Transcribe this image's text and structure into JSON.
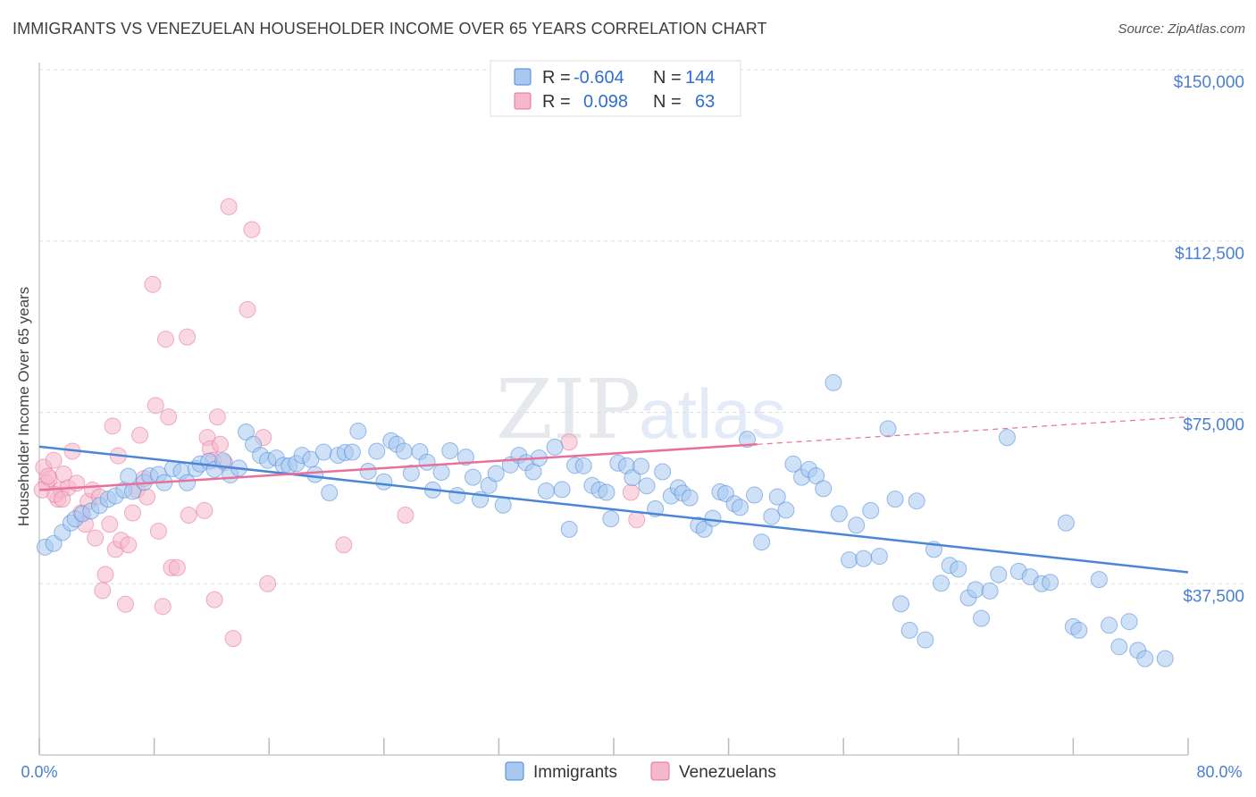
{
  "title": "IMMIGRANTS VS VENEZUELAN HOUSEHOLDER INCOME OVER 65 YEARS CORRELATION CHART",
  "source": "Source: ZipAtlas.com",
  "watermark": {
    "zip": "ZIP",
    "atlas": "atlas"
  },
  "legend_top": [
    {
      "r_label": "R =",
      "r_value": "-0.604",
      "n_label": "N =",
      "n_value": "144",
      "color": "#a8c8f0"
    },
    {
      "r_label": "R =",
      "r_value": "0.098",
      "n_label": "N =",
      "n_value": "63",
      "color": "#f5b8cb"
    }
  ],
  "legend_bottom": [
    {
      "label": "Immigrants",
      "color": "#a8c8f0"
    },
    {
      "label": "Venezuelans",
      "color": "#f5b8cb"
    }
  ],
  "chart_data": {
    "type": "scatter",
    "title": "IMMIGRANTS VS VENEZUELAN HOUSEHOLDER INCOME OVER 65 YEARS CORRELATION CHART",
    "xlabel": "",
    "ylabel": "Householder Income Over 65 years",
    "xlim": [
      0,
      80
    ],
    "ylim": [
      0,
      150000
    ],
    "x_tick_labels": [
      "0.0%",
      "80.0%"
    ],
    "y_ticks": [
      37500,
      75000,
      112500,
      150000
    ],
    "y_tick_labels": [
      "$37,500",
      "$75,000",
      "$112,500",
      "$150,000"
    ],
    "grid": "horizontal dashed",
    "legend_position": "top-center",
    "series": [
      {
        "name": "Immigrants",
        "color": "#4a86d8",
        "fill": "#a8c8f0",
        "trend": {
          "x": [
            0,
            80
          ],
          "y": [
            67500,
            40000
          ],
          "style": "solid"
        },
        "points": [
          [
            0.4,
            45500
          ],
          [
            1.0,
            46300
          ],
          [
            1.6,
            48700
          ],
          [
            2.2,
            50800
          ],
          [
            2.5,
            51700
          ],
          [
            3.0,
            52800
          ],
          [
            3.6,
            53400
          ],
          [
            4.2,
            54600
          ],
          [
            4.8,
            56000
          ],
          [
            5.3,
            56700
          ],
          [
            5.9,
            58000
          ],
          [
            6.2,
            61000
          ],
          [
            6.5,
            57700
          ],
          [
            7.3,
            59700
          ],
          [
            7.7,
            61100
          ],
          [
            8.3,
            61400
          ],
          [
            8.7,
            59600
          ],
          [
            9.3,
            62700
          ],
          [
            9.9,
            62100
          ],
          [
            10.3,
            59600
          ],
          [
            10.9,
            62700
          ],
          [
            11.2,
            63700
          ],
          [
            11.8,
            64300
          ],
          [
            12.2,
            62500
          ],
          [
            12.8,
            64400
          ],
          [
            13.3,
            61300
          ],
          [
            13.9,
            62800
          ],
          [
            14.4,
            70700
          ],
          [
            14.9,
            68000
          ],
          [
            15.4,
            65600
          ],
          [
            15.9,
            64500
          ],
          [
            16.5,
            65000
          ],
          [
            17.0,
            63400
          ],
          [
            17.4,
            63300
          ],
          [
            17.9,
            63800
          ],
          [
            18.3,
            65600
          ],
          [
            18.9,
            64700
          ],
          [
            19.2,
            61400
          ],
          [
            19.8,
            66300
          ],
          [
            20.2,
            57400
          ],
          [
            20.8,
            65600
          ],
          [
            21.3,
            66200
          ],
          [
            21.8,
            66300
          ],
          [
            22.2,
            70900
          ],
          [
            22.9,
            62100
          ],
          [
            23.5,
            66500
          ],
          [
            24.0,
            59800
          ],
          [
            24.5,
            68800
          ],
          [
            24.9,
            68000
          ],
          [
            25.4,
            66500
          ],
          [
            25.9,
            61700
          ],
          [
            26.5,
            66400
          ],
          [
            27.0,
            64100
          ],
          [
            27.4,
            58000
          ],
          [
            28.0,
            61900
          ],
          [
            28.6,
            66600
          ],
          [
            29.1,
            56800
          ],
          [
            29.7,
            65200
          ],
          [
            30.2,
            60800
          ],
          [
            30.7,
            55900
          ],
          [
            31.3,
            59000
          ],
          [
            31.8,
            61600
          ],
          [
            32.3,
            54700
          ],
          [
            32.8,
            63500
          ],
          [
            33.4,
            65600
          ],
          [
            33.9,
            64000
          ],
          [
            34.4,
            62000
          ],
          [
            34.8,
            65000
          ],
          [
            35.3,
            57800
          ],
          [
            35.9,
            67400
          ],
          [
            36.4,
            58100
          ],
          [
            36.9,
            49400
          ],
          [
            37.3,
            63400
          ],
          [
            37.9,
            63300
          ],
          [
            38.5,
            59000
          ],
          [
            39.0,
            58000
          ],
          [
            39.5,
            57500
          ],
          [
            39.8,
            51700
          ],
          [
            40.3,
            63900
          ],
          [
            40.9,
            63300
          ],
          [
            41.3,
            60700
          ],
          [
            41.9,
            63200
          ],
          [
            42.3,
            58900
          ],
          [
            42.9,
            53900
          ],
          [
            43.4,
            62000
          ],
          [
            44.0,
            56700
          ],
          [
            44.5,
            58500
          ],
          [
            44.8,
            57300
          ],
          [
            45.3,
            56300
          ],
          [
            45.9,
            50300
          ],
          [
            46.3,
            49400
          ],
          [
            46.9,
            51800
          ],
          [
            47.4,
            57600
          ],
          [
            47.8,
            57200
          ],
          [
            48.4,
            55000
          ],
          [
            48.8,
            54200
          ],
          [
            49.3,
            69100
          ],
          [
            49.8,
            56900
          ],
          [
            50.3,
            46600
          ],
          [
            51.0,
            52200
          ],
          [
            51.4,
            56500
          ],
          [
            52.0,
            53600
          ],
          [
            52.5,
            63700
          ],
          [
            53.1,
            60800
          ],
          [
            53.6,
            62500
          ],
          [
            54.1,
            61100
          ],
          [
            54.6,
            58300
          ],
          [
            55.3,
            81500
          ],
          [
            55.7,
            52800
          ],
          [
            56.4,
            42700
          ],
          [
            56.9,
            50300
          ],
          [
            57.4,
            43000
          ],
          [
            57.9,
            53500
          ],
          [
            58.5,
            43500
          ],
          [
            59.1,
            71400
          ],
          [
            59.6,
            56000
          ],
          [
            60.0,
            33100
          ],
          [
            60.6,
            27300
          ],
          [
            61.1,
            55600
          ],
          [
            61.7,
            25200
          ],
          [
            62.3,
            45000
          ],
          [
            62.8,
            37600
          ],
          [
            63.4,
            41500
          ],
          [
            64.0,
            40700
          ],
          [
            64.7,
            34400
          ],
          [
            65.2,
            36200
          ],
          [
            65.6,
            29900
          ],
          [
            66.2,
            35900
          ],
          [
            66.8,
            39500
          ],
          [
            67.4,
            69500
          ],
          [
            68.2,
            40200
          ],
          [
            69.0,
            39000
          ],
          [
            69.8,
            37500
          ],
          [
            70.4,
            37800
          ],
          [
            71.5,
            50800
          ],
          [
            72.0,
            28100
          ],
          [
            72.4,
            27300
          ],
          [
            73.8,
            38400
          ],
          [
            74.5,
            28400
          ],
          [
            75.2,
            23700
          ],
          [
            75.9,
            29200
          ],
          [
            76.5,
            22900
          ],
          [
            77.0,
            21100
          ],
          [
            78.4,
            21100
          ]
        ]
      },
      {
        "name": "Venezuelans",
        "color": "#e8709a",
        "fill": "#f5b8cb",
        "trend": {
          "x": [
            0,
            50
          ],
          "y": [
            58000,
            68000
          ],
          "style": "solid",
          "extension": {
            "x": [
              50,
              80
            ],
            "y": [
              68000,
              74000
            ],
            "style": "dashed"
          }
        },
        "points": [
          [
            0.3,
            63000
          ],
          [
            0.5,
            59500
          ],
          [
            0.7,
            60500
          ],
          [
            1.0,
            64500
          ],
          [
            1.3,
            56000
          ],
          [
            1.5,
            58000
          ],
          [
            1.7,
            61500
          ],
          [
            2.0,
            58500
          ],
          [
            2.3,
            66500
          ],
          [
            2.6,
            59500
          ],
          [
            2.9,
            53000
          ],
          [
            3.2,
            50500
          ],
          [
            3.4,
            55500
          ],
          [
            3.7,
            58000
          ],
          [
            3.9,
            47500
          ],
          [
            4.2,
            56500
          ],
          [
            4.4,
            36000
          ],
          [
            4.6,
            39500
          ],
          [
            4.9,
            50500
          ],
          [
            5.1,
            72000
          ],
          [
            5.3,
            45000
          ],
          [
            5.5,
            65500
          ],
          [
            5.7,
            47000
          ],
          [
            6.0,
            33000
          ],
          [
            6.2,
            46000
          ],
          [
            6.5,
            53000
          ],
          [
            6.8,
            58000
          ],
          [
            7.0,
            70000
          ],
          [
            7.3,
            60500
          ],
          [
            7.5,
            56500
          ],
          [
            7.9,
            103000
          ],
          [
            8.1,
            76500
          ],
          [
            8.3,
            49000
          ],
          [
            8.6,
            32500
          ],
          [
            8.8,
            91000
          ],
          [
            9.0,
            74000
          ],
          [
            9.2,
            41000
          ],
          [
            9.6,
            41000
          ],
          [
            10.4,
            52500
          ],
          [
            10.3,
            91500
          ],
          [
            11.5,
            53500
          ],
          [
            11.7,
            69500
          ],
          [
            11.9,
            67000
          ],
          [
            12.1,
            64500
          ],
          [
            12.2,
            34000
          ],
          [
            12.4,
            74000
          ],
          [
            12.6,
            68000
          ],
          [
            12.9,
            64000
          ],
          [
            13.2,
            120000
          ],
          [
            13.5,
            25500
          ],
          [
            14.5,
            97500
          ],
          [
            14.8,
            115000
          ],
          [
            15.6,
            69500
          ],
          [
            15.9,
            37500
          ],
          [
            21.2,
            46000
          ],
          [
            25.5,
            52500
          ],
          [
            36.9,
            68500
          ],
          [
            41.2,
            57500
          ],
          [
            41.6,
            51500
          ],
          [
            0.2,
            58000
          ],
          [
            0.6,
            61000
          ],
          [
            1.1,
            57000
          ],
          [
            1.6,
            56000
          ]
        ]
      }
    ]
  }
}
